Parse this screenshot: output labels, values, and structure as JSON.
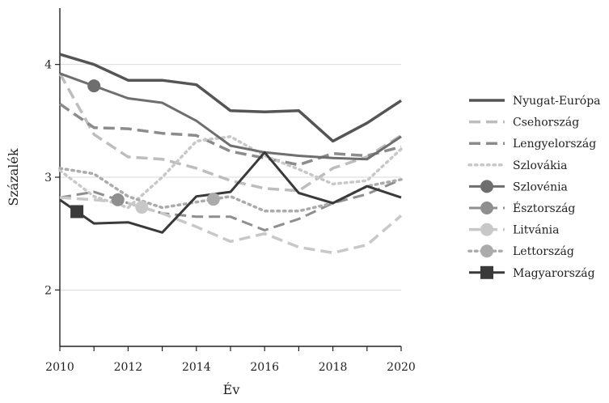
{
  "chart_data": {
    "type": "line",
    "title": "",
    "xlabel": "Év",
    "ylabel": "Százalék",
    "xlim": [
      2010,
      2020
    ],
    "ylim": [
      1.5,
      4.5
    ],
    "xticks": [
      "2010",
      "2012",
      "2014",
      "2016",
      "2018",
      "2020"
    ],
    "yticks": [
      "2",
      "3",
      "4"
    ],
    "grid": "horizontal",
    "legend_position": "right",
    "x": [
      2010,
      2011,
      2012,
      2013,
      2014,
      2015,
      2016,
      2017,
      2018,
      2019,
      2020
    ],
    "series": [
      {
        "name": "Nyugat-Európa",
        "color": "#555555",
        "dash": "solid",
        "width": 3.5,
        "marker": "none",
        "values": [
          4.09,
          4.0,
          3.86,
          3.86,
          3.82,
          3.59,
          3.58,
          3.59,
          3.32,
          3.48,
          3.68
        ]
      },
      {
        "name": "Csehország",
        "color": "#bdbdbd",
        "dash": "dashed",
        "width": 3.5,
        "marker": "none",
        "values": [
          3.92,
          3.38,
          3.18,
          3.16,
          3.08,
          2.97,
          2.9,
          2.88,
          3.08,
          3.18,
          3.37
        ]
      },
      {
        "name": "Lengyelország",
        "color": "#8c8c8c",
        "dash": "dashed",
        "width": 3.5,
        "marker": "none",
        "values": [
          3.65,
          3.44,
          3.43,
          3.39,
          3.37,
          3.23,
          3.17,
          3.11,
          3.21,
          3.19,
          3.27
        ]
      },
      {
        "name": "Szlovákia",
        "color": "#c8c8c8",
        "dash": "dotted",
        "width": 3.5,
        "marker": "none",
        "values": [
          3.06,
          2.83,
          2.73,
          3.0,
          3.32,
          3.36,
          3.19,
          3.07,
          2.94,
          2.97,
          3.25
        ]
      },
      {
        "name": "Szlovénia",
        "color": "#6e6e6e",
        "dash": "solid",
        "width": 3,
        "marker": "circle",
        "marker_at": 2011,
        "values": [
          3.92,
          3.81,
          3.7,
          3.66,
          3.5,
          3.28,
          3.22,
          3.19,
          3.17,
          3.16,
          3.36
        ]
      },
      {
        "name": "Észtország",
        "color": "#8f8f8f",
        "dash": "dashed",
        "width": 3,
        "marker": "circle",
        "marker_at": 2011.7,
        "values": [
          2.82,
          2.87,
          2.77,
          2.68,
          2.65,
          2.65,
          2.53,
          2.63,
          2.77,
          2.85,
          2.98
        ]
      },
      {
        "name": "Litvánia",
        "color": "#c8c8c8",
        "dash": "dashed",
        "width": 3.5,
        "marker": "circle",
        "marker_at": 2012.4,
        "values": [
          2.82,
          2.8,
          2.77,
          2.68,
          2.56,
          2.43,
          2.5,
          2.38,
          2.33,
          2.4,
          2.66
        ]
      },
      {
        "name": "Lettország",
        "color": "#ababab",
        "dash": "dotted",
        "width": 3.5,
        "marker": "circle",
        "marker_at": 2014.5,
        "values": [
          3.08,
          3.03,
          2.83,
          2.73,
          2.78,
          2.83,
          2.7,
          2.7,
          2.77,
          2.92,
          2.98
        ]
      },
      {
        "name": "Magyarország",
        "color": "#3a3a3a",
        "dash": "solid",
        "width": 3,
        "marker": "square",
        "marker_at": 2010.5,
        "values": [
          2.8,
          2.59,
          2.6,
          2.51,
          2.83,
          2.87,
          3.22,
          2.86,
          2.77,
          2.92,
          2.82
        ]
      }
    ]
  }
}
